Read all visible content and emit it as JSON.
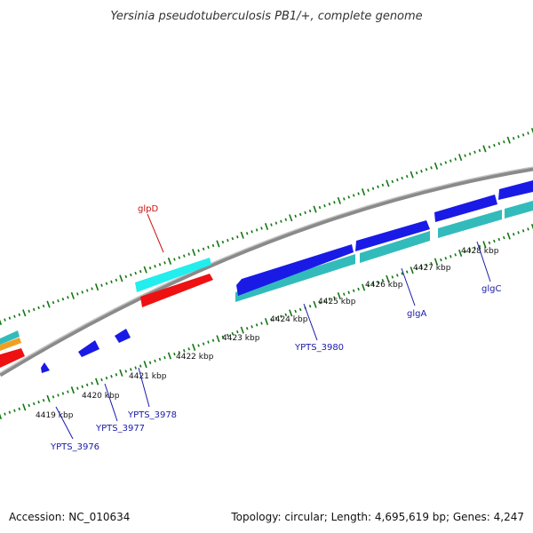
{
  "title": "Yersinia pseudotuberculosis PB1/+, complete genome",
  "footer": {
    "accession": "Accession: NC_010634",
    "summary": "Topology: circular; Length: 4,695,619 bp; Genes: 4,247"
  },
  "colors": {
    "forward_gene": "#1a1ae6",
    "reverse_gene": "#33cccc",
    "rna_cyan": "#22eeee",
    "rna_red": "#ee1111",
    "orange": "#f0a020",
    "backbone": "#8a8a8a",
    "tick": "#117711",
    "label": "#1a1aaa",
    "label_red": "#cc1111"
  },
  "tick_labels": [
    "4419 kbp",
    "4420 kbp",
    "4421 kbp",
    "4422 kbp",
    "4423 kbp",
    "4424 kbp",
    "4425 kbp",
    "4426 kbp",
    "4427 kbp",
    "4428 kbp"
  ],
  "gene_labels": [
    "YPTS_3976",
    "YPTS_3977",
    "YPTS_3978",
    "glpD",
    "YPTS_3980",
    "glgA",
    "glgC"
  ]
}
